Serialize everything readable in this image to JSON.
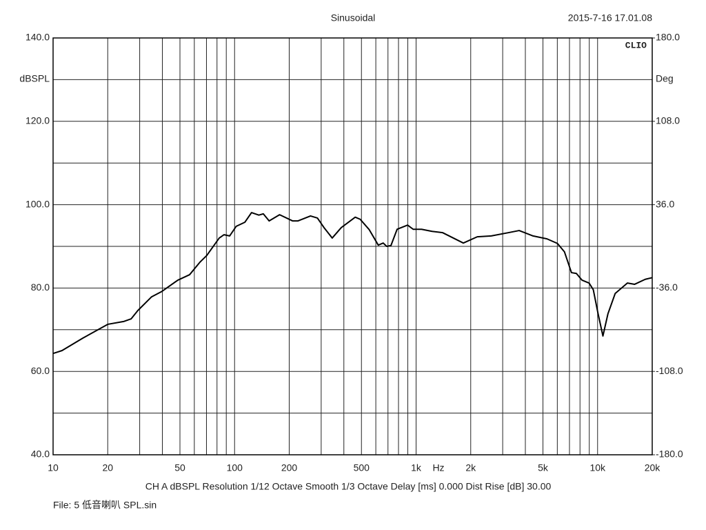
{
  "chart_data": {
    "type": "line",
    "title": "Sinusoidal",
    "timestamp": "2015-7-16 17.01.08",
    "logo": "CLIO",
    "xlabel": "Hz",
    "ylabel": "dBSPL",
    "y2label": "Deg",
    "footer": "CH A   dBSPL   Resolution 1/12 Octave   Smooth 1/3 Octave   Delay [ms] 0.000   Dist Rise [dB] 30.00",
    "file": "File: 5 低音喇叭 SPL.sin",
    "xscale": "log",
    "grid": true,
    "xlim": [
      10,
      20000
    ],
    "xticks": [
      10,
      20,
      50,
      100,
      200,
      500,
      {
        "value": 1000,
        "label": "1k"
      },
      {
        "value": 2000,
        "label": "2k"
      },
      {
        "value": 5000,
        "label": "5k"
      },
      {
        "value": 10000,
        "label": "10k"
      },
      {
        "value": 20000,
        "label": "20k"
      }
    ],
    "x_minor_ticks": [
      30,
      40,
      60,
      70,
      80,
      90,
      300,
      400,
      600,
      700,
      800,
      900,
      3000,
      4000,
      6000,
      7000,
      8000,
      9000
    ],
    "ylim": [
      40,
      140
    ],
    "yticks": [
      {
        "value": 40,
        "label": "40.0"
      },
      {
        "value": 60,
        "label": "60.0"
      },
      {
        "value": 80,
        "label": "80.0"
      },
      {
        "value": 100,
        "label": "100.0"
      },
      {
        "value": 120,
        "label": "120.0"
      },
      {
        "value": 140,
        "label": "140.0"
      }
    ],
    "y_minor_ticks": [
      50,
      70,
      90,
      110,
      130
    ],
    "y2lim": [
      -180,
      180
    ],
    "y2ticks": [
      {
        "value": -180,
        "label": "-180.0"
      },
      {
        "value": -108,
        "label": "-108.0"
      },
      {
        "value": -36,
        "label": "-36.0"
      },
      {
        "value": 36,
        "label": "36.0"
      },
      {
        "value": 108,
        "label": "108.0"
      },
      {
        "value": 180,
        "label": "180.0"
      }
    ],
    "x": [
      10,
      11.2,
      14.6,
      20,
      24.6,
      26.9,
      29.3,
      34.9,
      39.8,
      48.7,
      56.5,
      64.4,
      70.2,
      82.3,
      87.5,
      93.9,
      102,
      114,
      124,
      136,
      144,
      155,
      177,
      209,
      223,
      262,
      286,
      311,
      345,
      387,
      462,
      492,
      552,
      619,
      659,
      689,
      727,
      786,
      898,
      964,
      1072,
      1224,
      1398,
      1821,
      2173,
      2594,
      3237,
      3696,
      4410,
      5263,
      6006,
      6566,
      7180,
      7641,
      8207,
      8977,
      9470,
      10066,
      10700,
      11400,
      12500,
      14600,
      16000,
      18300,
      20000
    ],
    "series": [
      {
        "name": "CH A",
        "color": "#000000",
        "values": [
          64.3,
          65.0,
          68.0,
          71.3,
          72.0,
          72.6,
          74.6,
          77.9,
          79.2,
          81.9,
          83.2,
          86.2,
          87.8,
          92.0,
          92.8,
          92.5,
          94.8,
          95.8,
          98.1,
          97.5,
          97.8,
          96.1,
          97.6,
          96.1,
          96.1,
          97.3,
          96.8,
          94.5,
          92.0,
          94.5,
          97.0,
          96.5,
          94.0,
          90.3,
          90.8,
          90.0,
          90.2,
          94.1,
          95.1,
          94.1,
          94.1,
          93.6,
          93.3,
          90.8,
          92.3,
          92.5,
          93.3,
          93.8,
          92.5,
          91.8,
          90.7,
          88.7,
          83.7,
          83.5,
          81.9,
          81.2,
          79.6,
          73.8,
          68.5,
          73.8,
          78.7,
          81.2,
          80.9,
          82.1,
          82.5
        ]
      }
    ]
  }
}
